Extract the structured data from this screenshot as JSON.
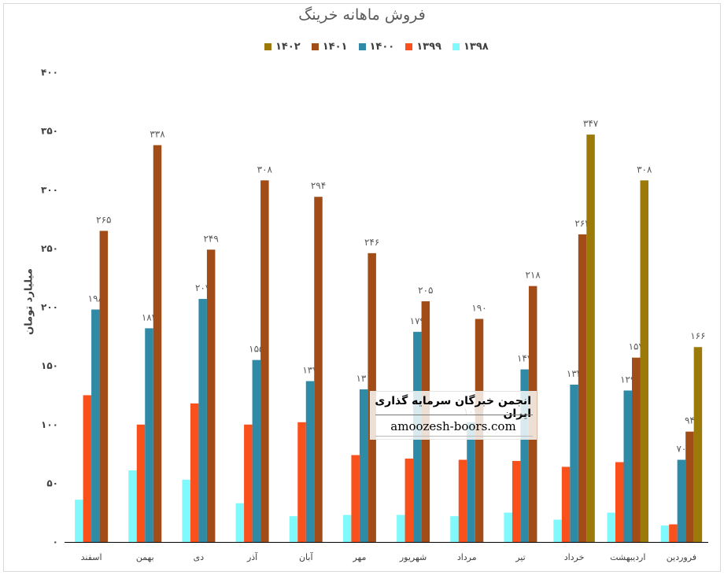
{
  "chart_data": {
    "type": "bar",
    "title": "فروش ماهانه خرینگ",
    "ylabel": "میلیارد تومان",
    "xlabel": "",
    "ylim": [
      0,
      400
    ],
    "yticks": [
      0,
      50,
      100,
      150,
      200,
      250,
      300,
      350,
      400
    ],
    "ytick_labels": [
      "۰",
      "۵۰",
      "۱۰۰",
      "۱۵۰",
      "۲۰۰",
      "۲۵۰",
      "۳۰۰",
      "۳۵۰",
      "۴۰۰"
    ],
    "grid": false,
    "legend_position": "top",
    "categories": [
      "فروردین",
      "اردیبهشت",
      "خرداد",
      "تیر",
      "مرداد",
      "شهریور",
      "مهر",
      "آبان",
      "آذر",
      "دی",
      "بهمن",
      "اسفند"
    ],
    "series": [
      {
        "name": "۱۳۹۸",
        "color": "#7ff9fb",
        "values": [
          14,
          25,
          19,
          25,
          22,
          23,
          23,
          22,
          33,
          53,
          61,
          36
        ],
        "labels": [
          "",
          "",
          "",
          "",
          "",
          "",
          "",
          "",
          "",
          "",
          "",
          ""
        ]
      },
      {
        "name": "۱۳۹۹",
        "color": "#f9501c",
        "values": [
          15,
          68,
          64,
          69,
          70,
          71,
          74,
          102,
          100,
          118,
          100,
          125
        ],
        "labels": [
          "",
          "",
          "",
          "",
          "",
          "",
          "",
          "",
          "",
          "",
          "",
          ""
        ]
      },
      {
        "name": "۱۴۰۰",
        "color": "#2f8aa6",
        "values": [
          70,
          129,
          134,
          147,
          102,
          179,
          130,
          137,
          155,
          207,
          182,
          198
        ],
        "labels": [
          "۷۰",
          "۱۲۹",
          "۱۳۴",
          "۱۴۷",
          "۱۰۲",
          "۱۷۹",
          "۱۳۰",
          "۱۳۷",
          "۱۵۵",
          "۲۰۷",
          "۱۸۲",
          "۱۹۸"
        ]
      },
      {
        "name": "۱۴۰۱",
        "color": "#a24d17",
        "values": [
          94,
          157,
          262,
          218,
          190,
          205,
          246,
          294,
          308,
          249,
          338,
          265
        ],
        "labels": [
          "۹۴",
          "۱۵۷",
          "۲۶۲",
          "۲۱۸",
          "۱۹۰",
          "۲۰۵",
          "۲۴۶",
          "۲۹۴",
          "۳۰۸",
          "۲۴۹",
          "۳۳۸",
          "۲۶۵"
        ]
      },
      {
        "name": "۱۴۰۲",
        "color": "#9c7a0a",
        "values": [
          166,
          308,
          347,
          null,
          null,
          null,
          null,
          null,
          null,
          null,
          null,
          null
        ],
        "labels": [
          "۱۶۶",
          "۳۰۸",
          "۳۴۷",
          "",
          "",
          "",
          "",
          "",
          "",
          "",
          "",
          ""
        ]
      }
    ]
  },
  "watermark": {
    "name": "انجمن خبرگان سرمایه گذاری ایران",
    "site": "amoozesh-boors.com"
  }
}
